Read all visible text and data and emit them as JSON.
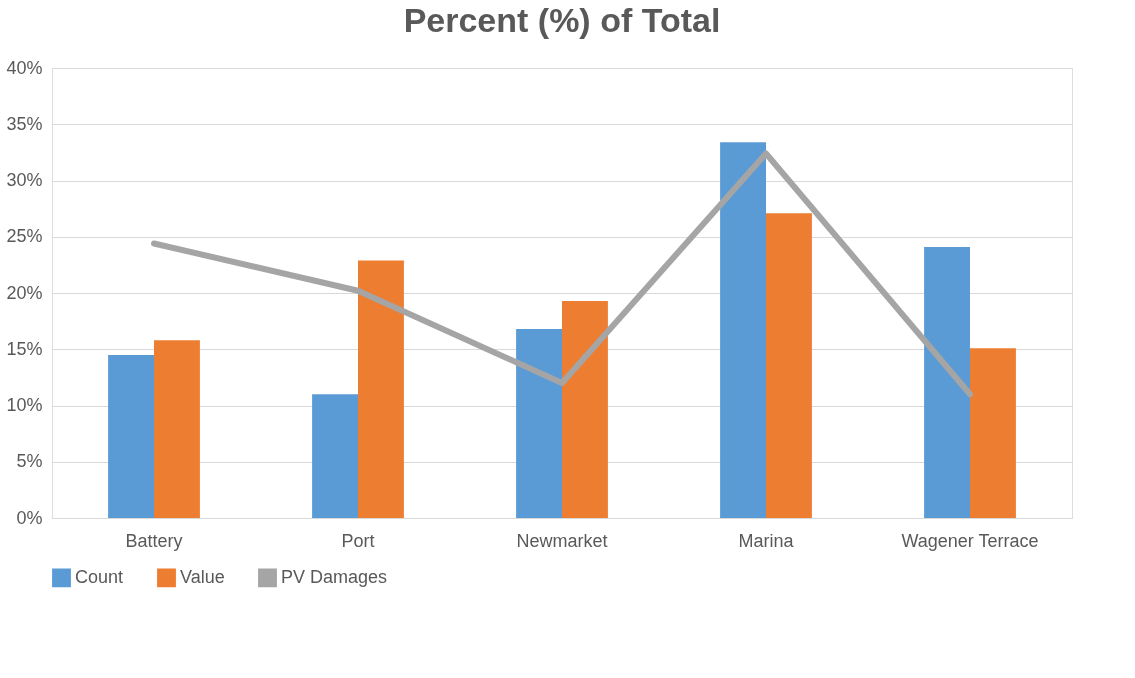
{
  "chart_data": {
    "type": "bar",
    "title": "Percent (%) of Total",
    "categories": [
      "Battery",
      "Port",
      "Newmarket",
      "Marina",
      "Wagener Terrace"
    ],
    "series": [
      {
        "name": "Count",
        "color": "#5b9bd5",
        "values": [
          14.5,
          11.0,
          16.8,
          33.4,
          24.1
        ]
      },
      {
        "name": "Value",
        "color": "#ed7d31",
        "values": [
          15.8,
          22.9,
          19.3,
          27.1,
          15.1
        ]
      },
      {
        "name": "PV Damages",
        "type": "line",
        "color": "#a5a5a5",
        "values": [
          24.4,
          20.2,
          12.0,
          32.4,
          11.0
        ]
      }
    ],
    "ylim": [
      0,
      40
    ],
    "yticks": [
      {
        "value": 0,
        "label": "0%"
      },
      {
        "value": 5,
        "label": "5%"
      },
      {
        "value": 10,
        "label": "10%"
      },
      {
        "value": 15,
        "label": "15%"
      },
      {
        "value": 20,
        "label": "20%"
      },
      {
        "value": 25,
        "label": "25%"
      },
      {
        "value": 30,
        "label": "30%"
      },
      {
        "value": 35,
        "label": "35%"
      },
      {
        "value": 40,
        "label": "40%"
      }
    ],
    "grid": "y",
    "legend": "bottom"
  }
}
